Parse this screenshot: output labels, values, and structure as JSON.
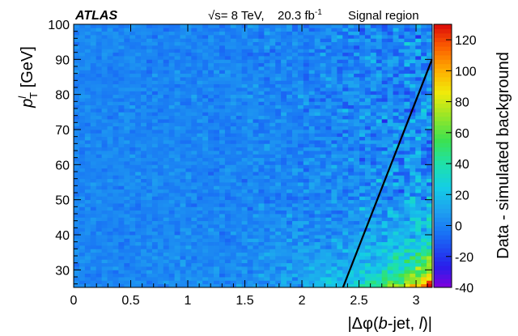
{
  "chart_data": {
    "type": "heatmap",
    "header": {
      "experiment": "ATLAS",
      "energy_label": "√s= 8 TeV,",
      "lumi_label": "20.3 fb",
      "lumi_exponent": "-1",
      "region": "Signal region"
    },
    "x_axis": {
      "label_prefix": "|Δφ(",
      "label_b": "b",
      "label_mid": "-jet, ",
      "label_l": "l",
      "label_suffix": ")|",
      "range": [
        0,
        3.14159
      ],
      "ticks": [
        0,
        0.5,
        1,
        1.5,
        2,
        2.5,
        3
      ],
      "tick_labels": [
        "0",
        "0.5",
        "1",
        "1.5",
        "2",
        "2.5",
        "3"
      ]
    },
    "y_axis": {
      "label_p": "p",
      "label_sup": "l",
      "label_sub": "T",
      "label_unit": " [GeV]",
      "range": [
        25,
        100
      ],
      "ticks": [
        30,
        40,
        50,
        60,
        70,
        80,
        90,
        100
      ],
      "tick_labels": [
        "30",
        "40",
        "50",
        "60",
        "70",
        "80",
        "90",
        "100"
      ]
    },
    "z_axis": {
      "label": "Data - simulated background",
      "range": [
        -40,
        130
      ],
      "ticks": [
        -40,
        -20,
        0,
        20,
        40,
        60,
        80,
        100,
        120
      ],
      "tick_labels": [
        "-40",
        "-20",
        "0",
        "20",
        "40",
        "60",
        "80",
        "100",
        "120"
      ],
      "palette": "rainbow (purple → blue → cyan → green → yellow → orange → red)"
    },
    "binning": {
      "x_bins": 64,
      "y_bins": 75
    },
    "cells_description": "Fluctuations around 0 over most of the plane; excess rises toward high |Δφ| and low pT, peaking near 120 at |Δφ|≈3.1, pT≈25–30 GeV.",
    "selection_line": {
      "x": [
        2.36,
        3.14
      ],
      "y": [
        25,
        90
      ]
    },
    "colors": {
      "line": "#000000",
      "frame": "#000000"
    }
  }
}
